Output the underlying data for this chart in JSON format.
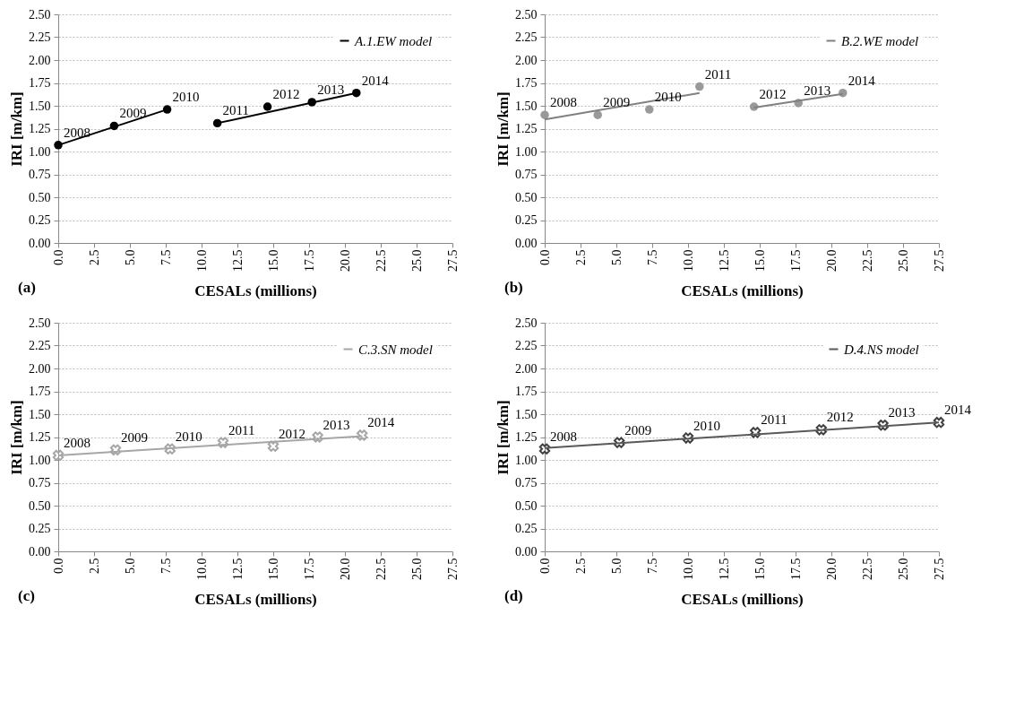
{
  "chart_data": [
    {
      "type": "scatter",
      "xlabel": "CESALs (millions)",
      "ylabel": "IRI [m/km]",
      "annotations": [
        "(a)",
        {
          "text": "2008",
          "x": 0,
          "y": 1.07
        },
        {
          "text": "2009",
          "x": 3.9,
          "y": 1.28
        },
        {
          "text": "2010",
          "x": 7.6,
          "y": 1.46
        },
        {
          "text": "2011",
          "x": 11.1,
          "y": 1.31
        },
        {
          "text": "2012",
          "x": 14.6,
          "y": 1.49
        },
        {
          "text": "2013",
          "x": 17.7,
          "y": 1.54
        },
        {
          "text": "2014",
          "x": 20.8,
          "y": 1.64
        }
      ],
      "series": [
        {
          "type": "scatter",
          "color": "#000000",
          "marker": "circle",
          "x": [
            0,
            3.9,
            7.6,
            11.1,
            14.6,
            17.7,
            20.8
          ],
          "values": [
            1.07,
            1.28,
            1.46,
            1.31,
            1.49,
            1.54,
            1.64
          ]
        },
        {
          "type": "line",
          "name": "A.1.EW model",
          "color": "#000000",
          "marker": "none",
          "line_style": "solid",
          "x": [
            0,
            7.6
          ],
          "values": [
            1.07,
            1.46
          ]
        },
        {
          "type": "line",
          "color": "#000000",
          "marker": "none",
          "line_style": "solid",
          "x": [
            11.1,
            20.8
          ],
          "values": [
            1.31,
            1.64
          ]
        }
      ],
      "xlim": [
        0,
        27.5
      ],
      "xticks": [
        {
          "value": 0,
          "label": "0.0"
        },
        {
          "value": 2.5,
          "label": "2.5"
        },
        {
          "value": 5,
          "label": "5.0"
        },
        {
          "value": 7.5,
          "label": "7.5"
        },
        {
          "value": 10,
          "label": "10.0"
        },
        {
          "value": 12.5,
          "label": "12.5"
        },
        {
          "value": 15,
          "label": "15.0"
        },
        {
          "value": 17.5,
          "label": "17.5"
        },
        {
          "value": 20,
          "label": "20.0"
        },
        {
          "value": 22.5,
          "label": "22.5"
        },
        {
          "value": 25,
          "label": "25.0"
        },
        {
          "value": 27.5,
          "label": "27.5"
        }
      ],
      "ylim": [
        0,
        2.5
      ],
      "yticks": [
        {
          "value": 0,
          "label": "0.00"
        },
        {
          "value": 0.25,
          "label": "0.25"
        },
        {
          "value": 0.5,
          "label": "0.50"
        },
        {
          "value": 0.75,
          "label": "0.75"
        },
        {
          "value": 1,
          "label": "1.00"
        },
        {
          "value": 1.25,
          "label": "1.25"
        },
        {
          "value": 1.5,
          "label": "1.50"
        },
        {
          "value": 1.75,
          "label": "1.75"
        },
        {
          "value": 2,
          "label": "2.00"
        },
        {
          "value": 2.25,
          "label": "2.25"
        },
        {
          "value": 2.5,
          "label": "2.50"
        }
      ],
      "grid": "y",
      "legend": "top right"
    },
    {
      "type": "scatter",
      "xlabel": "CESALs (millions)",
      "ylabel": "IRI [m/km]",
      "annotations": [
        "(b)",
        {
          "text": "2008",
          "x": 0,
          "y": 1.4
        },
        {
          "text": "2009",
          "x": 3.7,
          "y": 1.4
        },
        {
          "text": "2010",
          "x": 7.3,
          "y": 1.46
        },
        {
          "text": "2011",
          "x": 10.8,
          "y": 1.71
        },
        {
          "text": "2012",
          "x": 14.6,
          "y": 1.49
        },
        {
          "text": "2013",
          "x": 17.7,
          "y": 1.53
        },
        {
          "text": "2014",
          "x": 20.8,
          "y": 1.64
        }
      ],
      "series": [
        {
          "type": "scatter",
          "color": "#999999",
          "marker": "circle",
          "x": [
            0,
            3.7,
            7.3,
            10.8,
            14.6,
            17.7,
            20.8
          ],
          "values": [
            1.4,
            1.4,
            1.46,
            1.71,
            1.49,
            1.53,
            1.64
          ]
        },
        {
          "type": "line",
          "name": "B.2.WE model",
          "color": "#808080",
          "marker": "none",
          "line_style": "solid",
          "x": [
            0,
            10.8
          ],
          "values": [
            1.35,
            1.64
          ]
        },
        {
          "type": "line",
          "color": "#808080",
          "marker": "none",
          "line_style": "solid",
          "x": [
            14.6,
            20.8
          ],
          "values": [
            1.48,
            1.63
          ]
        }
      ],
      "xlim": [
        0,
        27.5
      ],
      "xticks": [
        {
          "value": 0,
          "label": "0.0"
        },
        {
          "value": 2.5,
          "label": "2.5"
        },
        {
          "value": 5,
          "label": "5.0"
        },
        {
          "value": 7.5,
          "label": "7.5"
        },
        {
          "value": 10,
          "label": "10.0"
        },
        {
          "value": 12.5,
          "label": "12.5"
        },
        {
          "value": 15,
          "label": "15.0"
        },
        {
          "value": 17.5,
          "label": "17.5"
        },
        {
          "value": 20,
          "label": "20.0"
        },
        {
          "value": 22.5,
          "label": "22.5"
        },
        {
          "value": 25,
          "label": "25.0"
        },
        {
          "value": 27.5,
          "label": "27.5"
        }
      ],
      "ylim": [
        0,
        2.5
      ],
      "yticks": [
        {
          "value": 0,
          "label": "0.00"
        },
        {
          "value": 0.25,
          "label": "0.25"
        },
        {
          "value": 0.5,
          "label": "0.50"
        },
        {
          "value": 0.75,
          "label": "0.75"
        },
        {
          "value": 1,
          "label": "1.00"
        },
        {
          "value": 1.25,
          "label": "1.25"
        },
        {
          "value": 1.5,
          "label": "1.50"
        },
        {
          "value": 1.75,
          "label": "1.75"
        },
        {
          "value": 2,
          "label": "2.00"
        },
        {
          "value": 2.25,
          "label": "2.25"
        },
        {
          "value": 2.5,
          "label": "2.50"
        }
      ],
      "grid": "y",
      "legend": "top right"
    },
    {
      "type": "scatter",
      "xlabel": "CESALs (millions)",
      "ylabel": "IRI [m/km]",
      "annotations": [
        "(c)",
        {
          "text": "2008",
          "x": 0,
          "y": 1.05
        },
        {
          "text": "2009",
          "x": 4.0,
          "y": 1.11
        },
        {
          "text": "2010",
          "x": 7.8,
          "y": 1.12
        },
        {
          "text": "2011",
          "x": 11.5,
          "y": 1.19
        },
        {
          "text": "2012",
          "x": 15.0,
          "y": 1.15
        },
        {
          "text": "2013",
          "x": 18.1,
          "y": 1.25
        },
        {
          "text": "2014",
          "x": 21.2,
          "y": 1.27
        }
      ],
      "series": [
        {
          "type": "scatter",
          "color": "#a6a6a6",
          "marker": "cross",
          "x": [
            0,
            4.0,
            7.8,
            11.5,
            15.0,
            18.1,
            21.2
          ],
          "values": [
            1.05,
            1.11,
            1.12,
            1.19,
            1.15,
            1.25,
            1.27
          ]
        },
        {
          "type": "line",
          "name": "C.3.SN model",
          "color": "#a6a6a6",
          "marker": "none",
          "line_style": "solid",
          "x": [
            0,
            21.2
          ],
          "values": [
            1.05,
            1.26
          ]
        }
      ],
      "xlim": [
        0,
        27.5
      ],
      "xticks": [
        {
          "value": 0,
          "label": "0.0"
        },
        {
          "value": 2.5,
          "label": "2.5"
        },
        {
          "value": 5,
          "label": "5.0"
        },
        {
          "value": 7.5,
          "label": "7.5"
        },
        {
          "value": 10,
          "label": "10.0"
        },
        {
          "value": 12.5,
          "label": "12.5"
        },
        {
          "value": 15,
          "label": "15.0"
        },
        {
          "value": 17.5,
          "label": "17.5"
        },
        {
          "value": 20,
          "label": "20.0"
        },
        {
          "value": 22.5,
          "label": "22.5"
        },
        {
          "value": 25,
          "label": "25.0"
        },
        {
          "value": 27.5,
          "label": "27.5"
        }
      ],
      "ylim": [
        0,
        2.5
      ],
      "yticks": [
        {
          "value": 0,
          "label": "0.00"
        },
        {
          "value": 0.25,
          "label": "0.25"
        },
        {
          "value": 0.5,
          "label": "0.50"
        },
        {
          "value": 0.75,
          "label": "0.75"
        },
        {
          "value": 1,
          "label": "1.00"
        },
        {
          "value": 1.25,
          "label": "1.25"
        },
        {
          "value": 1.5,
          "label": "1.50"
        },
        {
          "value": 1.75,
          "label": "1.75"
        },
        {
          "value": 2,
          "label": "2.00"
        },
        {
          "value": 2.25,
          "label": "2.25"
        },
        {
          "value": 2.5,
          "label": "2.50"
        }
      ],
      "grid": "y",
      "legend": "top right"
    },
    {
      "type": "scatter",
      "xlabel": "CESALs (millions)",
      "ylabel": "IRI [m/km]",
      "annotations": [
        "(d)",
        {
          "text": "2008",
          "x": 0,
          "y": 1.12
        },
        {
          "text": "2009",
          "x": 5.2,
          "y": 1.19
        },
        {
          "text": "2010",
          "x": 10.0,
          "y": 1.24
        },
        {
          "text": "2011",
          "x": 14.7,
          "y": 1.3
        },
        {
          "text": "2012",
          "x": 19.3,
          "y": 1.33
        },
        {
          "text": "2013",
          "x": 23.6,
          "y": 1.38
        },
        {
          "text": "2014",
          "x": 27.5,
          "y": 1.41
        }
      ],
      "series": [
        {
          "type": "scatter",
          "color": "#404040",
          "marker": "cross",
          "x": [
            0,
            5.2,
            10.0,
            14.7,
            19.3,
            23.6,
            27.5
          ],
          "values": [
            1.12,
            1.19,
            1.24,
            1.3,
            1.33,
            1.38,
            1.41
          ]
        },
        {
          "type": "line",
          "name": "D.4.NS model",
          "color": "#595959",
          "marker": "none",
          "line_style": "solid",
          "x": [
            0,
            27.5
          ],
          "values": [
            1.13,
            1.41
          ]
        }
      ],
      "xlim": [
        0,
        27.5
      ],
      "xticks": [
        {
          "value": 0,
          "label": "0.0"
        },
        {
          "value": 2.5,
          "label": "2.5"
        },
        {
          "value": 5,
          "label": "5.0"
        },
        {
          "value": 7.5,
          "label": "7.5"
        },
        {
          "value": 10,
          "label": "10.0"
        },
        {
          "value": 12.5,
          "label": "12.5"
        },
        {
          "value": 15,
          "label": "15.0"
        },
        {
          "value": 17.5,
          "label": "17.5"
        },
        {
          "value": 20,
          "label": "20.0"
        },
        {
          "value": 22.5,
          "label": "22.5"
        },
        {
          "value": 25,
          "label": "25.0"
        },
        {
          "value": 27.5,
          "label": "27.5"
        }
      ],
      "ylim": [
        0,
        2.5
      ],
      "yticks": [
        {
          "value": 0,
          "label": "0.00"
        },
        {
          "value": 0.25,
          "label": "0.25"
        },
        {
          "value": 0.5,
          "label": "0.50"
        },
        {
          "value": 0.75,
          "label": "0.75"
        },
        {
          "value": 1,
          "label": "1.00"
        },
        {
          "value": 1.25,
          "label": "1.25"
        },
        {
          "value": 1.5,
          "label": "1.50"
        },
        {
          "value": 1.75,
          "label": "1.75"
        },
        {
          "value": 2,
          "label": "2.00"
        },
        {
          "value": 2.25,
          "label": "2.25"
        },
        {
          "value": 2.5,
          "label": "2.50"
        }
      ],
      "grid": "y",
      "legend": "top right"
    }
  ]
}
